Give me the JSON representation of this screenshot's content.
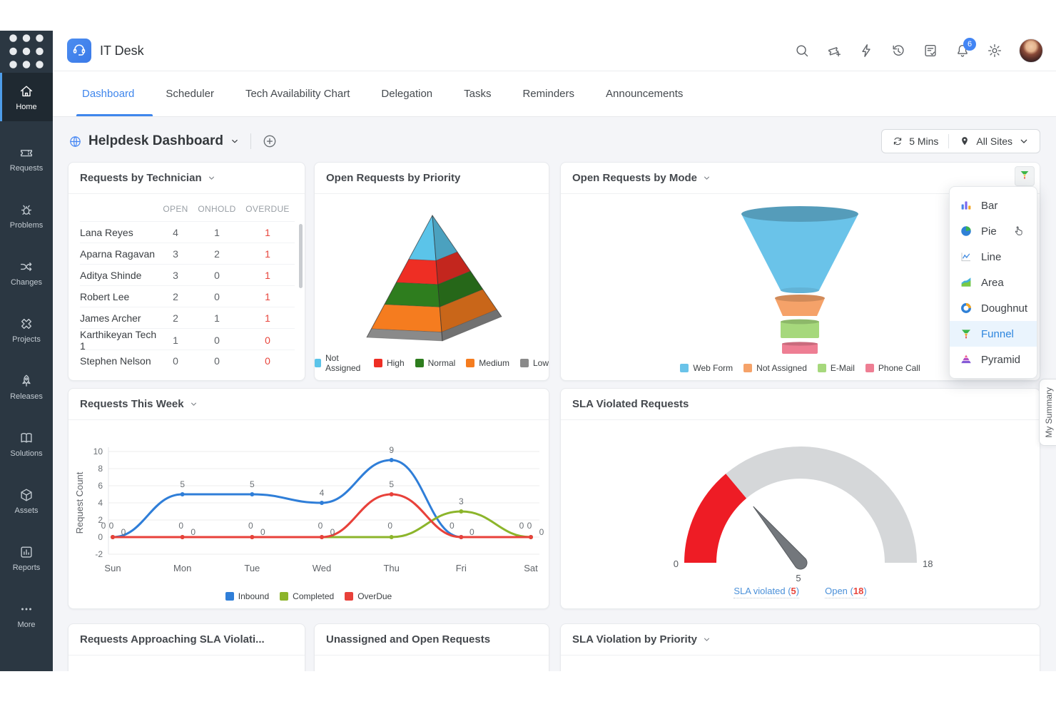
{
  "topbar": {
    "app_name": "IT Desk",
    "notification_count": "6",
    "icons": [
      "search",
      "ticket-add",
      "flash",
      "history",
      "feedback",
      "notifications",
      "settings",
      "avatar"
    ]
  },
  "sidebar": {
    "items": [
      {
        "label": "Home",
        "icon": "home",
        "active": true
      },
      {
        "label": "Requests",
        "icon": "requests",
        "active": false
      },
      {
        "label": "Problems",
        "icon": "problems",
        "active": false
      },
      {
        "label": "Changes",
        "icon": "changes",
        "active": false
      },
      {
        "label": "Projects",
        "icon": "projects",
        "active": false
      },
      {
        "label": "Releases",
        "icon": "releases",
        "active": false
      },
      {
        "label": "Solutions",
        "icon": "solutions",
        "active": false
      },
      {
        "label": "Assets",
        "icon": "assets",
        "active": false
      },
      {
        "label": "Reports",
        "icon": "reports",
        "active": false
      },
      {
        "label": "More",
        "icon": "more",
        "active": false
      }
    ]
  },
  "tabs": {
    "items": [
      "Dashboard",
      "Scheduler",
      "Tech Availability Chart",
      "Delegation",
      "Tasks",
      "Reminders",
      "Announcements"
    ],
    "active": "Dashboard"
  },
  "page_header": {
    "title": "Helpdesk Dashboard",
    "refresh_interval": "5 Mins",
    "site_filter": "All Sites"
  },
  "my_summary_label": "My Summary",
  "chart_type_menu": {
    "selected": "Funnel",
    "items": [
      {
        "label": "Bar",
        "icon": "bar"
      },
      {
        "label": "Pie",
        "icon": "pie"
      },
      {
        "label": "Line",
        "icon": "line"
      },
      {
        "label": "Area",
        "icon": "area"
      },
      {
        "label": "Doughnut",
        "icon": "doughnut"
      },
      {
        "label": "Funnel",
        "icon": "funnel"
      },
      {
        "label": "Pyramid",
        "icon": "pyramid"
      }
    ]
  },
  "cards": {
    "technician_title": "Requests by Technician",
    "priority_title": "Open Requests by Priority",
    "mode_title": "Open Requests by Mode",
    "week_title": "Requests This Week",
    "sla_title": "SLA Violated Requests",
    "approaching_title": "Requests Approaching SLA Violati...",
    "unassigned_title": "Unassigned and Open Requests",
    "violation_priority_title": "SLA Violation by Priority"
  },
  "chart_data": [
    {
      "id": "technician",
      "type": "table",
      "title": "Requests by Technician",
      "columns": [
        "OPEN",
        "ONHOLD",
        "OVERDUE"
      ],
      "rows": [
        {
          "name": "Lana Reyes",
          "open": 4,
          "onhold": 1,
          "overdue": 1
        },
        {
          "name": "Aparna Ragavan",
          "open": 3,
          "onhold": 2,
          "overdue": 1
        },
        {
          "name": "Aditya Shinde",
          "open": 3,
          "onhold": 0,
          "overdue": 1
        },
        {
          "name": "Robert Lee",
          "open": 2,
          "onhold": 0,
          "overdue": 1
        },
        {
          "name": "James Archer",
          "open": 2,
          "onhold": 1,
          "overdue": 1
        },
        {
          "name": "Karthikeyan Tech 1",
          "open": 1,
          "onhold": 0,
          "overdue": 0
        },
        {
          "name": "Stephen Nelson",
          "open": 0,
          "onhold": 0,
          "overdue": 0
        }
      ]
    },
    {
      "id": "priority",
      "type": "pyramid",
      "title": "Open Requests by Priority",
      "segments": [
        {
          "label": "Not Assigned",
          "color": "#5bc4e9",
          "frac": 0.36
        },
        {
          "label": "High",
          "color": "#ee2e24",
          "frac": 0.19
        },
        {
          "label": "Normal",
          "color": "#2e7d1e",
          "frac": 0.18
        },
        {
          "label": "Medium",
          "color": "#f57c1f",
          "frac": 0.2
        },
        {
          "label": "Low",
          "color": "#8a8a8a",
          "frac": 0.07
        }
      ]
    },
    {
      "id": "mode",
      "type": "funnel",
      "title": "Open Requests by Mode",
      "segments": [
        {
          "label": "Web Form",
          "color": "#6ac3e9"
        },
        {
          "label": "Not Assigned",
          "color": "#f5a269"
        },
        {
          "label": "E-Mail",
          "color": "#a6d87c"
        },
        {
          "label": "Phone Call",
          "color": "#ee7e93"
        }
      ]
    },
    {
      "id": "week",
      "type": "line",
      "title": "Requests This Week",
      "categories": [
        "Sun",
        "Mon",
        "Tue",
        "Wed",
        "Thu",
        "Fri",
        "Sat"
      ],
      "series": [
        {
          "name": "Inbound",
          "color": "#2f7ed8",
          "values": [
            0,
            5,
            5,
            4,
            9,
            0,
            0
          ]
        },
        {
          "name": "Completed",
          "color": "#8cb52b",
          "values": [
            0,
            0,
            0,
            0,
            0,
            3,
            0
          ]
        },
        {
          "name": "OverDue",
          "color": "#e8413a",
          "values": [
            0,
            0,
            0,
            0,
            5,
            0,
            0
          ]
        }
      ],
      "ylabel": "Request Count",
      "ylim": [
        -2,
        10
      ],
      "yticks": [
        -2,
        0,
        2,
        4,
        6,
        8,
        10
      ],
      "grid": true,
      "legend_position": "bottom"
    },
    {
      "id": "sla",
      "type": "gauge",
      "title": "SLA Violated Requests",
      "min": 0,
      "max": 18,
      "value": 5,
      "value_color": "#ee1c25",
      "track_color": "#d5d7d9",
      "legend": [
        {
          "text": "SLA violated",
          "value": "5"
        },
        {
          "text": "Open",
          "value": "18"
        }
      ]
    }
  ]
}
